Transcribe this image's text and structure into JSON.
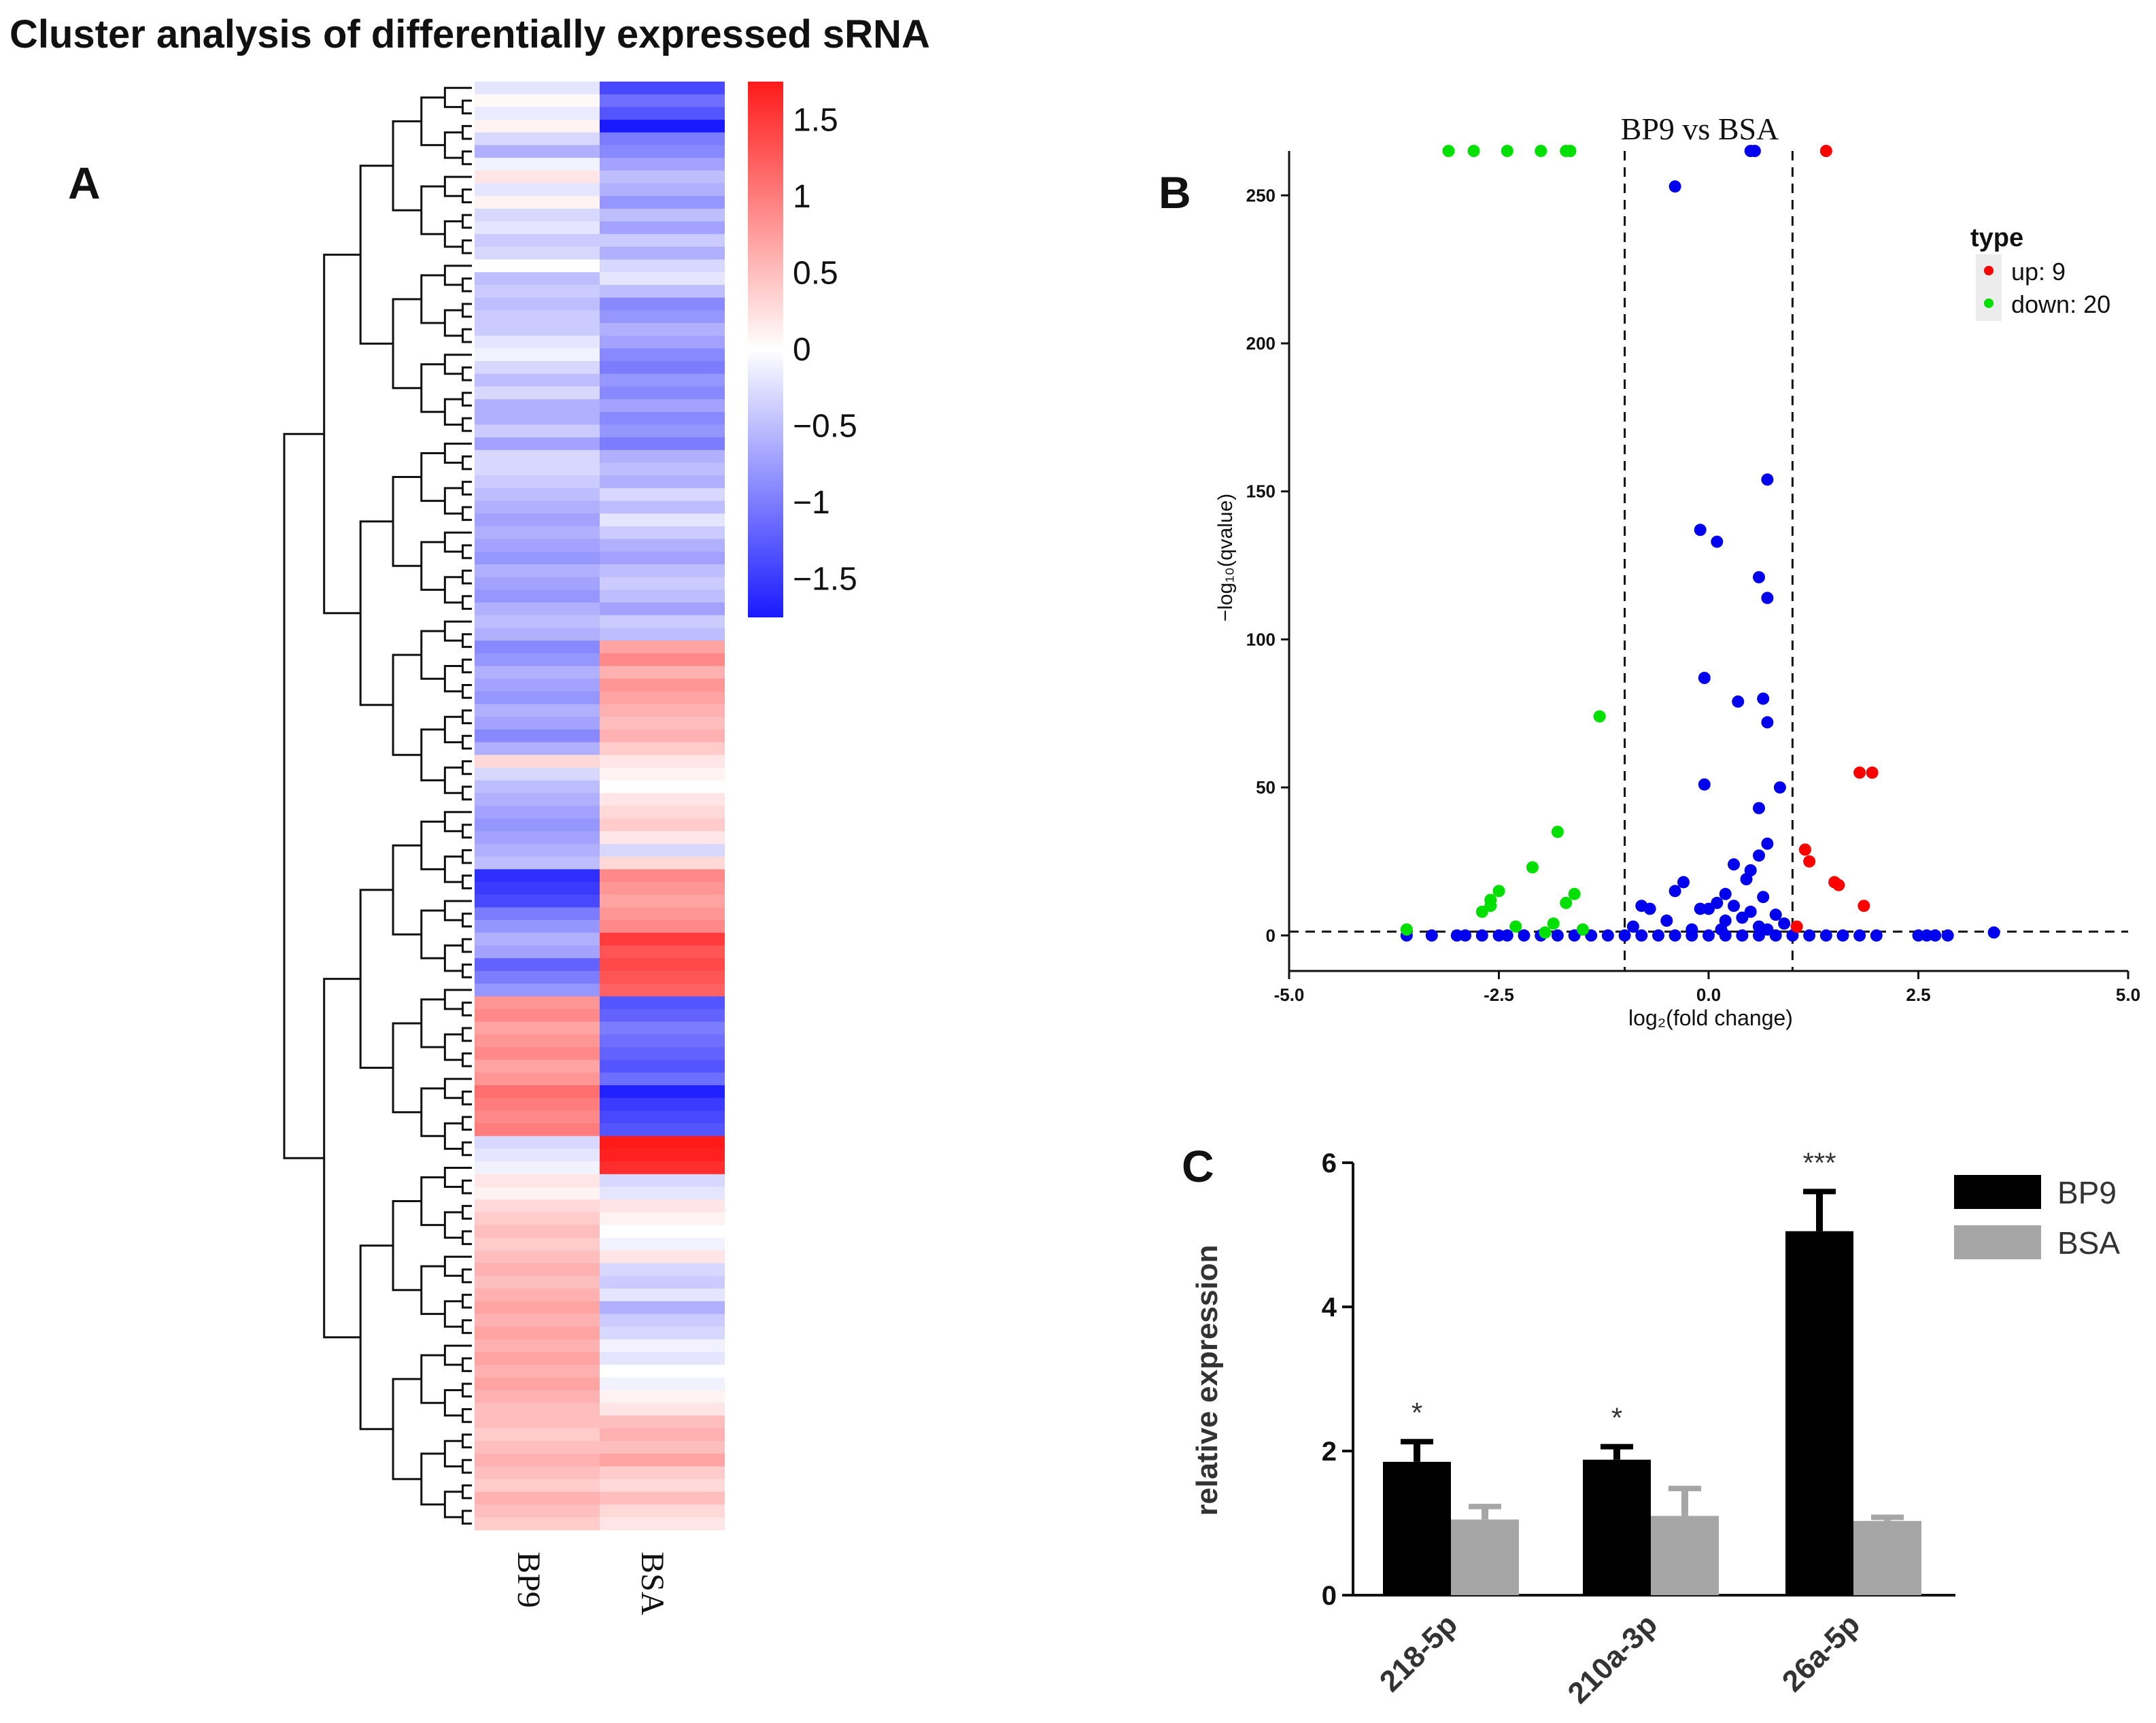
{
  "figure_title": "Cluster analysis of differentially expressed sRNA",
  "panels": {
    "a": "A",
    "b": "B",
    "c": "C"
  },
  "colors": {
    "red": "#ff1a1a",
    "white": "#ffffff",
    "blue": "#1a1aff",
    "up": "#ff0000",
    "down": "#00e000",
    "ns": "#0000ee",
    "bp9_bar": "#000000",
    "bsa_bar": "#a6a6a6"
  },
  "chart_data": [
    {
      "type": "heatmap",
      "columns": [
        "BP9",
        "BSA"
      ],
      "colorbar": {
        "ticks": [
          "1.5",
          "1",
          "0.5",
          "0",
          "−0.5",
          "−1",
          "−1.5"
        ],
        "tick_values": [
          1.5,
          1,
          0.5,
          0,
          -0.5,
          -1,
          -1.5
        ],
        "range": [
          -1.75,
          1.75
        ]
      },
      "rows": [
        [
          -0.2,
          -1.4
        ],
        [
          0.05,
          -1.1
        ],
        [
          -0.15,
          -1.3
        ],
        [
          0.1,
          -1.75
        ],
        [
          -0.3,
          -1.0
        ],
        [
          -0.6,
          -0.9
        ],
        [
          -0.1,
          -0.7
        ],
        [
          0.2,
          -0.5
        ],
        [
          -0.2,
          -0.6
        ],
        [
          0.1,
          -0.8
        ],
        [
          -0.3,
          -0.5
        ],
        [
          -0.2,
          -0.7
        ],
        [
          -0.4,
          -0.4
        ],
        [
          -0.3,
          -0.6
        ],
        [
          0.0,
          -0.3
        ],
        [
          -0.5,
          -0.2
        ],
        [
          -0.4,
          -0.5
        ],
        [
          -0.5,
          -0.9
        ],
        [
          -0.4,
          -0.8
        ],
        [
          -0.4,
          -0.6
        ],
        [
          -0.2,
          -0.7
        ],
        [
          -0.1,
          -0.9
        ],
        [
          -0.3,
          -1.0
        ],
        [
          -0.5,
          -0.8
        ],
        [
          -0.3,
          -0.9
        ],
        [
          -0.6,
          -0.7
        ],
        [
          -0.6,
          -0.9
        ],
        [
          -0.4,
          -0.8
        ],
        [
          -0.7,
          -1.0
        ],
        [
          -0.3,
          -0.6
        ],
        [
          -0.3,
          -0.5
        ],
        [
          -0.4,
          -0.6
        ],
        [
          -0.5,
          -0.3
        ],
        [
          -0.6,
          -0.5
        ],
        [
          -0.7,
          -0.2
        ],
        [
          -0.6,
          -0.4
        ],
        [
          -0.7,
          -0.6
        ],
        [
          -0.8,
          -0.7
        ],
        [
          -0.6,
          -0.5
        ],
        [
          -0.7,
          -0.4
        ],
        [
          -0.8,
          -0.5
        ],
        [
          -0.6,
          -0.7
        ],
        [
          -0.5,
          -0.4
        ],
        [
          -0.6,
          -0.5
        ],
        [
          -0.9,
          0.7
        ],
        [
          -0.8,
          0.9
        ],
        [
          -0.6,
          0.6
        ],
        [
          -0.7,
          0.8
        ],
        [
          -0.8,
          0.7
        ],
        [
          -0.6,
          0.6
        ],
        [
          -0.7,
          0.5
        ],
        [
          -0.9,
          0.6
        ],
        [
          -0.6,
          0.4
        ],
        [
          0.3,
          0.2
        ],
        [
          -0.3,
          0.1
        ],
        [
          -0.5,
          0.0
        ],
        [
          -0.6,
          0.2
        ],
        [
          -0.7,
          0.3
        ],
        [
          -0.8,
          0.4
        ],
        [
          -0.7,
          0.2
        ],
        [
          -0.6,
          -0.3
        ],
        [
          -0.5,
          0.3
        ],
        [
          -1.6,
          0.9
        ],
        [
          -1.5,
          0.8
        ],
        [
          -1.4,
          0.7
        ],
        [
          -1.0,
          0.8
        ],
        [
          -0.8,
          0.9
        ],
        [
          -0.6,
          1.5
        ],
        [
          -0.7,
          1.3
        ],
        [
          -1.2,
          1.4
        ],
        [
          -1.0,
          1.3
        ],
        [
          -0.8,
          1.2
        ],
        [
          0.8,
          -1.3
        ],
        [
          0.9,
          -1.2
        ],
        [
          0.7,
          -1.0
        ],
        [
          0.8,
          -1.1
        ],
        [
          0.9,
          -1.2
        ],
        [
          0.7,
          -1.3
        ],
        [
          0.8,
          -1.1
        ],
        [
          1.1,
          -1.7
        ],
        [
          1.0,
          -1.5
        ],
        [
          0.9,
          -1.4
        ],
        [
          1.0,
          -1.3
        ],
        [
          -0.3,
          1.75
        ],
        [
          -0.2,
          1.7
        ],
        [
          -0.1,
          1.6
        ],
        [
          0.2,
          -0.3
        ],
        [
          0.1,
          -0.2
        ],
        [
          0.3,
          0.2
        ],
        [
          0.4,
          0.1
        ],
        [
          0.5,
          0.0
        ],
        [
          0.4,
          -0.1
        ],
        [
          0.5,
          0.2
        ],
        [
          0.6,
          -0.3
        ],
        [
          0.5,
          -0.4
        ],
        [
          0.6,
          -0.2
        ],
        [
          0.7,
          -0.6
        ],
        [
          0.6,
          -0.4
        ],
        [
          0.7,
          -0.3
        ],
        [
          0.6,
          -0.1
        ],
        [
          0.7,
          -0.2
        ],
        [
          0.6,
          0.0
        ],
        [
          0.7,
          -0.1
        ],
        [
          0.6,
          0.1
        ],
        [
          0.5,
          0.2
        ],
        [
          0.5,
          0.5
        ],
        [
          0.4,
          0.6
        ],
        [
          0.5,
          0.5
        ],
        [
          0.6,
          0.7
        ],
        [
          0.5,
          0.4
        ],
        [
          0.4,
          0.3
        ],
        [
          0.6,
          0.5
        ],
        [
          0.5,
          0.3
        ],
        [
          0.4,
          0.2
        ]
      ]
    },
    {
      "type": "scatter",
      "title": "BP9 vs BSA",
      "xlabel": "log₂(fold change)",
      "ylabel": "−log₁₀(qvalue)",
      "xlim": [
        -5.0,
        5.0
      ],
      "ylim": [
        -12,
        265
      ],
      "xticks": [
        "-5.0",
        "-2.5",
        "0.0",
        "2.5",
        "5.0"
      ],
      "xtick_values": [
        -5.0,
        -2.5,
        0.0,
        2.5,
        5.0
      ],
      "yticks": [
        "0",
        "50",
        "100",
        "150",
        "200",
        "250"
      ],
      "ytick_values": [
        0,
        50,
        100,
        150,
        200,
        250
      ],
      "thresholds": {
        "x": [
          -1.0,
          1.0
        ],
        "y": 1.3
      },
      "legend": {
        "title": "type",
        "items": [
          "up: 9",
          "down: 20"
        ],
        "position": "top-right"
      },
      "series": [
        {
          "name": "up",
          "points": [
            [
              1.4,
              265
            ],
            [
              1.8,
              55
            ],
            [
              1.95,
              55
            ],
            [
              1.15,
              29
            ],
            [
              1.2,
              25
            ],
            [
              1.5,
              18
            ],
            [
              1.55,
              17
            ],
            [
              1.85,
              10
            ],
            [
              1.05,
              3
            ]
          ]
        },
        {
          "name": "down",
          "points": [
            [
              -3.1,
              265
            ],
            [
              -2.8,
              265
            ],
            [
              -2.4,
              265
            ],
            [
              -2.0,
              265
            ],
            [
              -1.7,
              265
            ],
            [
              -1.65,
              265
            ],
            [
              -1.3,
              74
            ],
            [
              -1.8,
              35
            ],
            [
              -2.1,
              23
            ],
            [
              -2.5,
              15
            ],
            [
              -2.6,
              12
            ],
            [
              -1.6,
              14
            ],
            [
              -1.7,
              11
            ],
            [
              -2.7,
              8
            ],
            [
              -2.6,
              10
            ],
            [
              -1.85,
              4
            ],
            [
              -3.6,
              2
            ],
            [
              -2.3,
              3
            ],
            [
              -1.95,
              1
            ],
            [
              -1.5,
              2
            ]
          ]
        },
        {
          "name": "ns",
          "points": [
            [
              0.5,
              265
            ],
            [
              0.55,
              265
            ],
            [
              -0.4,
              253
            ],
            [
              0.7,
              154
            ],
            [
              -0.1,
              137
            ],
            [
              0.1,
              133
            ],
            [
              0.6,
              121
            ],
            [
              0.7,
              114
            ],
            [
              -0.05,
              87
            ],
            [
              0.65,
              80
            ],
            [
              0.35,
              79
            ],
            [
              0.7,
              72
            ],
            [
              -0.05,
              51
            ],
            [
              0.85,
              50
            ],
            [
              0.6,
              43
            ],
            [
              0.7,
              31
            ],
            [
              0.6,
              27
            ],
            [
              0.3,
              24
            ],
            [
              0.5,
              22
            ],
            [
              0.45,
              19
            ],
            [
              -0.3,
              18
            ],
            [
              -0.4,
              15
            ],
            [
              0.2,
              14
            ],
            [
              0.65,
              13
            ],
            [
              0.1,
              11
            ],
            [
              0.3,
              10
            ],
            [
              -0.1,
              9
            ],
            [
              0.0,
              9
            ],
            [
              -0.7,
              9
            ],
            [
              -0.8,
              10
            ],
            [
              0.5,
              8
            ],
            [
              0.8,
              7
            ],
            [
              0.4,
              6
            ],
            [
              0.2,
              5
            ],
            [
              0.9,
              4
            ],
            [
              -0.5,
              5
            ],
            [
              -0.9,
              3
            ],
            [
              0.6,
              3
            ],
            [
              0.15,
              2
            ],
            [
              0.7,
              2
            ],
            [
              -0.2,
              2
            ],
            [
              -3.6,
              0
            ],
            [
              -3.3,
              0
            ],
            [
              -3.0,
              0
            ],
            [
              -2.9,
              0
            ],
            [
              -2.7,
              0
            ],
            [
              -2.5,
              0
            ],
            [
              -2.4,
              0
            ],
            [
              -2.2,
              0
            ],
            [
              -2.0,
              0
            ],
            [
              -1.8,
              0
            ],
            [
              -1.6,
              0
            ],
            [
              -1.4,
              0
            ],
            [
              -1.2,
              0
            ],
            [
              -1.0,
              0
            ],
            [
              -0.8,
              0
            ],
            [
              -0.6,
              0
            ],
            [
              -0.4,
              0
            ],
            [
              -0.2,
              0
            ],
            [
              0.0,
              0
            ],
            [
              0.2,
              0
            ],
            [
              0.4,
              0
            ],
            [
              0.6,
              0
            ],
            [
              0.8,
              0
            ],
            [
              1.0,
              0
            ],
            [
              1.2,
              0
            ],
            [
              1.4,
              0
            ],
            [
              1.6,
              0
            ],
            [
              1.8,
              0
            ],
            [
              2.0,
              0
            ],
            [
              2.5,
              0
            ],
            [
              2.6,
              0
            ],
            [
              2.7,
              0
            ],
            [
              2.85,
              0
            ],
            [
              3.4,
              1
            ]
          ]
        }
      ]
    },
    {
      "type": "bar",
      "categories": [
        "218-5p",
        "210a-3p",
        "26a-5p"
      ],
      "series": [
        {
          "name": "BP9",
          "values": [
            1.85,
            1.88,
            5.05
          ],
          "errors": [
            0.28,
            0.18,
            0.55
          ]
        },
        {
          "name": "BSA",
          "values": [
            1.05,
            1.1,
            1.03
          ],
          "errors": [
            0.18,
            0.38,
            0.05
          ]
        }
      ],
      "significance": [
        "*",
        "*",
        "***"
      ],
      "ylabel": "relative expression",
      "ylim": [
        0,
        6
      ],
      "yticks": [
        "0",
        "2",
        "4",
        "6"
      ],
      "ytick_values": [
        0,
        2,
        4,
        6
      ],
      "legend": {
        "items": [
          "BP9",
          "BSA"
        ],
        "position": "top-right"
      }
    }
  ]
}
